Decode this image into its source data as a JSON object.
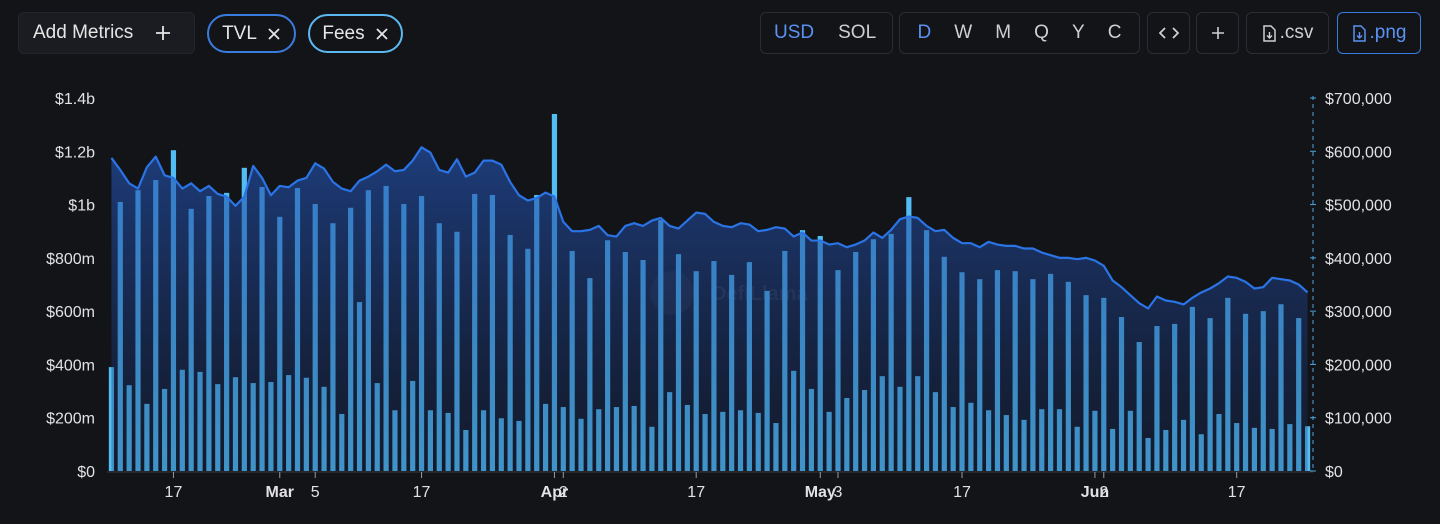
{
  "controls": {
    "add_metrics": "Add Metrics",
    "currency": [
      "USD",
      "SOL"
    ],
    "intervals": [
      "D",
      "W",
      "M",
      "Q",
      "Y",
      "C"
    ],
    "csv": ".csv",
    "png": ".png"
  },
  "chart_data": {
    "type": "combo",
    "watermark": "DefiLlama",
    "categories": [
      "Feb 10",
      "Feb 11",
      "Feb 12",
      "Feb 13",
      "Feb 14",
      "Feb 15",
      "Feb 16",
      "Feb 17",
      "Feb 18",
      "Feb 19",
      "Feb 20",
      "Feb 21",
      "Feb 22",
      "Feb 23",
      "Feb 24",
      "Feb 25",
      "Feb 26",
      "Feb 27",
      "Feb 28",
      "Mar 1",
      "Mar 2",
      "Mar 3",
      "Mar 4",
      "Mar 5",
      "Mar 6",
      "Mar 7",
      "Mar 8",
      "Mar 9",
      "Mar 10",
      "Mar 11",
      "Mar 12",
      "Mar 13",
      "Mar 14",
      "Mar 15",
      "Mar 16",
      "Mar 17",
      "Mar 18",
      "Mar 19",
      "Mar 20",
      "Mar 21",
      "Mar 22",
      "Mar 23",
      "Mar 24",
      "Mar 25",
      "Mar 26",
      "Mar 27",
      "Mar 28",
      "Mar 29",
      "Mar 30",
      "Mar 31",
      "Apr 1",
      "Apr 2",
      "Apr 3",
      "Apr 4",
      "Apr 5",
      "Apr 6",
      "Apr 7",
      "Apr 8",
      "Apr 9",
      "Apr 10",
      "Apr 11",
      "Apr 12",
      "Apr 13",
      "Apr 14",
      "Apr 15",
      "Apr 16",
      "Apr 17",
      "Apr 18",
      "Apr 19",
      "Apr 20",
      "Apr 21",
      "Apr 22",
      "Apr 23",
      "Apr 24",
      "Apr 25",
      "Apr 26",
      "Apr 27",
      "Apr 28",
      "Apr 29",
      "Apr 30",
      "May 1",
      "May 2",
      "May 3",
      "May 4",
      "May 5",
      "May 6",
      "May 7",
      "May 8",
      "May 9",
      "May 10",
      "May 11",
      "May 12",
      "May 13",
      "May 14",
      "May 15",
      "May 16",
      "May 17",
      "May 18",
      "May 19",
      "May 20",
      "May 21",
      "May 22",
      "May 23",
      "May 24",
      "May 25",
      "May 26",
      "May 27",
      "May 28",
      "May 29",
      "May 30",
      "May 31",
      "Jun 1",
      "Jun 2",
      "Jun 3",
      "Jun 4",
      "Jun 5",
      "Jun 6",
      "Jun 7",
      "Jun 8",
      "Jun 9",
      "Jun 10",
      "Jun 11",
      "Jun 12",
      "Jun 13",
      "Jun 14",
      "Jun 15",
      "Jun 16",
      "Jun 17",
      "Jun 18",
      "Jun 19",
      "Jun 20",
      "Jun 21",
      "Jun 22",
      "Jun 23",
      "Jun 24",
      "Jun 25"
    ],
    "series": [
      {
        "name": "TVL",
        "type": "area",
        "color": "#2a74e6",
        "values": [
          1175000000,
          1130000000,
          1080000000,
          1060000000,
          1140000000,
          1180000000,
          1110000000,
          1100000000,
          1060000000,
          1080000000,
          1050000000,
          1070000000,
          1040000000,
          1030000000,
          995000000,
          1030000000,
          1145000000,
          1100000000,
          1035000000,
          1070000000,
          1065000000,
          1090000000,
          1100000000,
          1155000000,
          1135000000,
          1085000000,
          1060000000,
          1050000000,
          1090000000,
          1105000000,
          1125000000,
          1150000000,
          1125000000,
          1130000000,
          1165000000,
          1215000000,
          1195000000,
          1130000000,
          1120000000,
          1170000000,
          1105000000,
          1120000000,
          1165000000,
          1165000000,
          1150000000,
          1085000000,
          1035000000,
          1015000000,
          1025000000,
          1045000000,
          1030000000,
          935000000,
          900000000,
          900000000,
          905000000,
          920000000,
          885000000,
          880000000,
          920000000,
          930000000,
          920000000,
          940000000,
          950000000,
          920000000,
          910000000,
          940000000,
          970000000,
          965000000,
          935000000,
          920000000,
          915000000,
          930000000,
          925000000,
          900000000,
          905000000,
          915000000,
          910000000,
          880000000,
          895000000,
          865000000,
          865000000,
          850000000,
          855000000,
          840000000,
          850000000,
          865000000,
          895000000,
          875000000,
          905000000,
          945000000,
          955000000,
          950000000,
          920000000,
          900000000,
          905000000,
          875000000,
          855000000,
          855000000,
          840000000,
          860000000,
          850000000,
          845000000,
          845000000,
          835000000,
          835000000,
          820000000,
          810000000,
          800000000,
          800000000,
          795000000,
          800000000,
          790000000,
          770000000,
          715000000,
          690000000,
          660000000,
          630000000,
          610000000,
          655000000,
          640000000,
          635000000,
          625000000,
          650000000,
          670000000,
          685000000,
          705000000,
          730000000,
          725000000,
          710000000,
          685000000,
          690000000,
          725000000,
          720000000,
          715000000,
          700000000,
          670000000
        ]
      },
      {
        "name": "Fees",
        "type": "bar",
        "axis": "y2",
        "color": "#52bdf3",
        "values": [
          195000,
          505000,
          161000,
          527000,
          126000,
          546000,
          154000,
          602000,
          190000,
          492000,
          186000,
          516000,
          163000,
          522000,
          176000,
          569000,
          165000,
          533000,
          167000,
          477000,
          180000,
          531000,
          175000,
          501000,
          158000,
          465000,
          107000,
          494000,
          317000,
          527000,
          165000,
          535000,
          114000,
          501000,
          169000,
          516000,
          114000,
          465000,
          109000,
          449000,
          77000,
          520000,
          114000,
          518000,
          99000,
          443000,
          94000,
          417000,
          518000,
          126000,
          670000,
          120000,
          413000,
          98000,
          362000,
          116000,
          433000,
          120000,
          411000,
          122000,
          396000,
          83000,
          471000,
          148000,
          407000,
          124000,
          375000,
          107000,
          394000,
          111000,
          368000,
          114000,
          392000,
          109000,
          338000,
          90000,
          413000,
          188000,
          452000,
          154000,
          441000,
          111000,
          377000,
          137000,
          411000,
          152000,
          435000,
          178000,
          445000,
          158000,
          514000,
          178000,
          452000,
          148000,
          402000,
          120000,
          373000,
          128000,
          360000,
          114000,
          377000,
          105000,
          375000,
          96000,
          360000,
          116000,
          370000,
          116000,
          355000,
          83000,
          330000,
          113000,
          325000,
          79000,
          289000,
          113000,
          242000,
          62000,
          272000,
          77000,
          276000,
          96000,
          308000,
          69000,
          287000,
          107000,
          325000,
          90000,
          295000,
          81000,
          300000,
          79000,
          313000,
          88000,
          287000,
          84000
        ]
      }
    ],
    "ylim": [
      0,
      1400000000
    ],
    "yticks": [
      {
        "value": 0,
        "label": "$0"
      },
      {
        "value": 200000000,
        "label": "$200m"
      },
      {
        "value": 400000000,
        "label": "$400m"
      },
      {
        "value": 600000000,
        "label": "$600m"
      },
      {
        "value": 800000000,
        "label": "$800m"
      },
      {
        "value": 1000000000,
        "label": "$1b"
      },
      {
        "value": 1200000000,
        "label": "$1.2b"
      },
      {
        "value": 1400000000,
        "label": "$1.4b"
      }
    ],
    "y2lim": [
      0,
      700000
    ],
    "y2ticks": [
      {
        "value": 0,
        "label": "$0"
      },
      {
        "value": 100000,
        "label": "$100,000"
      },
      {
        "value": 200000,
        "label": "$200,000"
      },
      {
        "value": 300000,
        "label": "$300,000"
      },
      {
        "value": 400000,
        "label": "$400,000"
      },
      {
        "value": 500000,
        "label": "$500,000"
      },
      {
        "value": 600000,
        "label": "$600,000"
      },
      {
        "value": 700000,
        "label": "$700,000"
      }
    ],
    "xticks": [
      {
        "value": "Feb 17",
        "label": "17"
      },
      {
        "value": "Mar 1",
        "label": "Mar"
      },
      {
        "value": "Mar 5",
        "label": "5"
      },
      {
        "value": "Mar 17",
        "label": "17"
      },
      {
        "value": "Apr 1",
        "label": "Apr"
      },
      {
        "value": "Apr 2",
        "label": "2"
      },
      {
        "value": "Apr 17",
        "label": "17"
      },
      {
        "value": "May 1",
        "label": "May"
      },
      {
        "value": "May 3",
        "label": "3"
      },
      {
        "value": "May 17",
        "label": "17"
      },
      {
        "value": "Jun 1",
        "label": "Jun"
      },
      {
        "value": "Jun 2",
        "label": "2"
      },
      {
        "value": "Jun 17",
        "label": "17"
      }
    ]
  }
}
